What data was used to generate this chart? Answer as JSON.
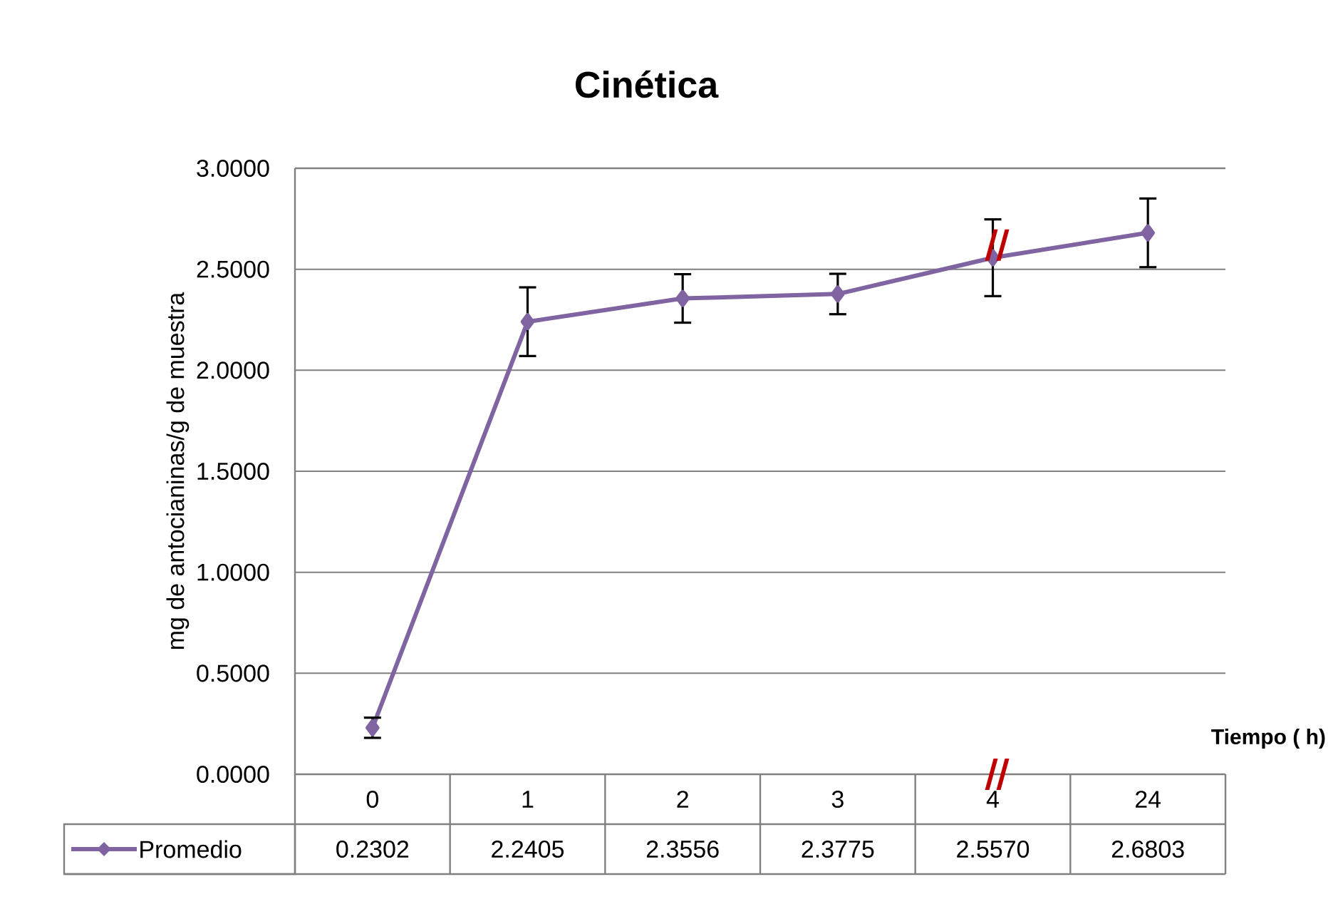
{
  "chart_data": {
    "type": "line",
    "title": "Cinética",
    "xlabel": "Tiempo ( h)",
    "ylabel": "mg de antocianinas/g de muestra",
    "categories": [
      "0",
      "1",
      "2",
      "3",
      "4",
      "24"
    ],
    "series": [
      {
        "name": "Promedio",
        "color": "#8064a2",
        "values": [
          0.2302,
          2.2405,
          2.3556,
          2.3775,
          2.557,
          2.6803
        ],
        "errors": [
          0.05,
          0.17,
          0.12,
          0.1,
          0.19,
          0.17
        ],
        "value_labels": [
          "0.2302",
          "2.2405",
          "2.3556",
          "2.3775",
          "2.5570",
          "2.6803"
        ]
      }
    ],
    "ylim": [
      0,
      3
    ],
    "yticks": [
      {
        "value": 0,
        "label": "0.0000"
      },
      {
        "value": 0.5,
        "label": "0.5000"
      },
      {
        "value": 1,
        "label": "1.0000"
      },
      {
        "value": 1.5,
        "label": "1.5000"
      },
      {
        "value": 2,
        "label": "2.0000"
      },
      {
        "value": 2.5,
        "label": "2.5000"
      },
      {
        "value": 3,
        "label": "3.0000"
      }
    ],
    "grid": "y",
    "legend": "bottom",
    "marker": "diamond",
    "line_style": "solid",
    "data_labels": true
  }
}
